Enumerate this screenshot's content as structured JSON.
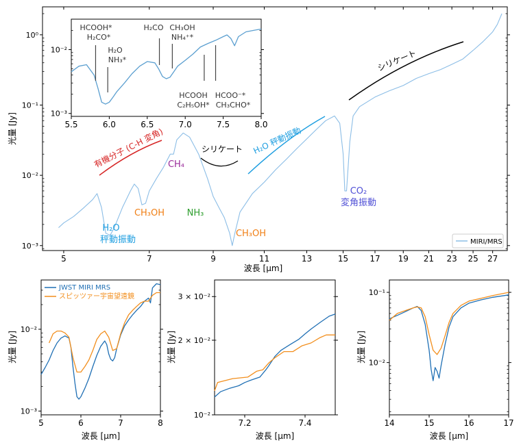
{
  "chart_data": [
    {
      "id": "main",
      "type": "line",
      "xscale": "log",
      "yscale": "log",
      "xlim": [
        4.6,
        28.6
      ],
      "ylim": [
        0.00085,
        2.5
      ],
      "xticks": [
        5,
        7,
        9,
        11,
        13,
        15,
        17,
        19,
        21,
        23,
        25,
        27
      ],
      "xtick_labels": [
        "5",
        "7",
        "9",
        "11",
        "13",
        "15",
        "17",
        "19",
        "21",
        "23",
        "25",
        "27"
      ],
      "yticks": [
        0.001,
        0.01,
        0.1,
        1
      ],
      "ytick_labels": [
        "10⁻³",
        "10⁻²",
        "10⁻¹",
        "10⁰"
      ],
      "xlabel": "波長 [μm]",
      "ylabel": "光量 [Jy]",
      "legend": {
        "position": "bottom-right",
        "entries": [
          "MIRI/MRS"
        ]
      },
      "series": [
        {
          "name": "MIRI/MRS",
          "color": "#8bbde6",
          "x": [
            4.9,
            5.0,
            5.2,
            5.4,
            5.6,
            5.7,
            5.8,
            5.9,
            6.0,
            6.1,
            6.3,
            6.5,
            6.6,
            6.7,
            6.8,
            6.9,
            7.0,
            7.2,
            7.4,
            7.6,
            7.7,
            7.8,
            8.0,
            8.2,
            8.5,
            8.8,
            9.0,
            9.2,
            9.4,
            9.6,
            9.7,
            9.8,
            10.0,
            10.5,
            11.0,
            11.5,
            12.0,
            12.5,
            13.0,
            13.5,
            14.0,
            14.5,
            14.8,
            15.0,
            15.1,
            15.2,
            15.4,
            15.6,
            16.0,
            17.0,
            18.0,
            19.0,
            20.0,
            21.0,
            22.0,
            23.0,
            24.0,
            25.0,
            26.0,
            27.0,
            27.5,
            28.0
          ],
          "y": [
            0.0018,
            0.0021,
            0.0026,
            0.0034,
            0.0045,
            0.0055,
            0.0035,
            0.0015,
            0.0014,
            0.0018,
            0.0035,
            0.006,
            0.0075,
            0.0065,
            0.0038,
            0.004,
            0.006,
            0.009,
            0.013,
            0.02,
            0.02,
            0.032,
            0.04,
            0.035,
            0.02,
            0.009,
            0.005,
            0.0035,
            0.0025,
            0.0015,
            0.001,
            0.0015,
            0.003,
            0.0055,
            0.008,
            0.012,
            0.017,
            0.024,
            0.033,
            0.045,
            0.06,
            0.07,
            0.055,
            0.02,
            0.006,
            0.006,
            0.03,
            0.07,
            0.095,
            0.13,
            0.16,
            0.19,
            0.24,
            0.28,
            0.32,
            0.38,
            0.45,
            0.6,
            0.8,
            1.1,
            1.4,
            2.0
          ]
        }
      ]
    },
    {
      "id": "inset",
      "type": "line",
      "xscale": "linear",
      "yscale": "log",
      "xlim": [
        5.5,
        8.0
      ],
      "ylim": [
        0.0009,
        0.03
      ],
      "xticks": [
        5.5,
        6.0,
        6.5,
        7.0,
        7.5,
        8.0
      ],
      "xtick_labels": [
        "5.5",
        "6.0",
        "6.5",
        "7.0",
        "7.5",
        "8.0"
      ],
      "yticks": [
        0.001,
        0.01
      ],
      "ytick_labels": [
        "10⁻³",
        "10⁻²"
      ],
      "series": [
        {
          "name": "MIRI/MRS",
          "color": "#5b9fd0",
          "x": [
            5.5,
            5.6,
            5.7,
            5.8,
            5.85,
            5.9,
            5.95,
            6.0,
            6.05,
            6.1,
            6.2,
            6.3,
            6.4,
            6.5,
            6.6,
            6.65,
            6.7,
            6.75,
            6.8,
            6.85,
            6.9,
            7.0,
            7.1,
            7.2,
            7.3,
            7.4,
            7.5,
            7.55,
            7.6,
            7.65,
            7.7,
            7.8,
            7.9,
            8.0
          ],
          "y": [
            0.0045,
            0.0055,
            0.0058,
            0.004,
            0.0025,
            0.0015,
            0.0014,
            0.0015,
            0.0018,
            0.0022,
            0.003,
            0.0042,
            0.0055,
            0.0065,
            0.0062,
            0.005,
            0.0038,
            0.0035,
            0.0037,
            0.0045,
            0.0055,
            0.0068,
            0.0085,
            0.011,
            0.0125,
            0.014,
            0.016,
            0.017,
            0.015,
            0.0115,
            0.016,
            0.019,
            0.02,
            0.021
          ]
        }
      ],
      "annotations": [
        {
          "text": "HCOOH*",
          "x": 5.82
        },
        {
          "text": "H₂CO*",
          "x": 5.82
        },
        {
          "text": "H₂O",
          "x": 5.98
        },
        {
          "text": "NH₃*",
          "x": 5.98
        },
        {
          "text": "H₂CO",
          "x": 6.66
        },
        {
          "text": "CH₃OH",
          "x": 6.83
        },
        {
          "text": "NH₄⁺*",
          "x": 6.83
        },
        {
          "text": "HCOOH",
          "x": 7.25
        },
        {
          "text": "C₂H₅OH*",
          "x": 7.25
        },
        {
          "text": "HCOO⁻*",
          "x": 7.4
        },
        {
          "text": "CH₃CHO*",
          "x": 7.4
        }
      ]
    },
    {
      "id": "bottom-left",
      "type": "line",
      "xscale": "linear",
      "yscale": "log",
      "xlim": [
        5.0,
        8.0
      ],
      "ylim": [
        0.0009,
        0.04
      ],
      "xticks": [
        5,
        6,
        7,
        8
      ],
      "xtick_labels": [
        "5",
        "6",
        "7",
        "8"
      ],
      "yticks": [
        0.001,
        0.01
      ],
      "ytick_labels": [
        "10⁻³",
        "10⁻²"
      ],
      "xlabel": "波長 [μm]",
      "ylabel": "光量 [Jy]",
      "legend": {
        "position": "top-left",
        "entries": [
          "JWST MIRI MRS",
          "スピッツァー宇宙望遠鏡"
        ]
      },
      "series": [
        {
          "name": "JWST MIRI MRS",
          "color": "#1f6fb4",
          "x": [
            5.0,
            5.1,
            5.2,
            5.3,
            5.4,
            5.5,
            5.6,
            5.7,
            5.75,
            5.8,
            5.85,
            5.9,
            5.95,
            6.0,
            6.1,
            6.2,
            6.3,
            6.4,
            6.5,
            6.6,
            6.65,
            6.7,
            6.75,
            6.8,
            6.85,
            6.9,
            7.0,
            7.1,
            7.2,
            7.3,
            7.4,
            7.5,
            7.6,
            7.7,
            7.75,
            7.8,
            7.9,
            8.0
          ],
          "y": [
            0.0028,
            0.0034,
            0.0042,
            0.0055,
            0.0068,
            0.0078,
            0.0083,
            0.0078,
            0.006,
            0.0035,
            0.0022,
            0.0015,
            0.0014,
            0.0015,
            0.0019,
            0.0025,
            0.0035,
            0.0048,
            0.0062,
            0.0072,
            0.0065,
            0.005,
            0.0043,
            0.0041,
            0.0045,
            0.0058,
            0.0085,
            0.011,
            0.013,
            0.015,
            0.017,
            0.019,
            0.022,
            0.024,
            0.021,
            0.032,
            0.036,
            0.035
          ]
        },
        {
          "name": "スピッツァー宇宙望遠鏡",
          "color": "#f28e1c",
          "x": [
            5.2,
            5.3,
            5.4,
            5.5,
            5.6,
            5.7,
            5.8,
            5.9,
            6.0,
            6.1,
            6.2,
            6.3,
            6.4,
            6.5,
            6.6,
            6.7,
            6.8,
            6.9,
            7.0,
            7.1,
            7.2,
            7.3,
            7.4,
            7.5,
            7.6,
            7.7,
            7.8,
            7.9,
            8.0
          ],
          "y": [
            0.0068,
            0.0088,
            0.0095,
            0.0095,
            0.009,
            0.008,
            0.0045,
            0.003,
            0.003,
            0.0035,
            0.0042,
            0.0055,
            0.0075,
            0.0088,
            0.0095,
            0.008,
            0.0055,
            0.0058,
            0.0088,
            0.012,
            0.015,
            0.017,
            0.019,
            0.021,
            0.022,
            0.022,
            0.026,
            0.028,
            0.028
          ]
        }
      ]
    },
    {
      "id": "bottom-middle",
      "type": "line",
      "xscale": "linear",
      "yscale": "log",
      "xlim": [
        7.1,
        7.5
      ],
      "ylim": [
        0.01,
        0.035
      ],
      "xticks": [
        7.2,
        7.4
      ],
      "xtick_labels": [
        "7.2",
        "7.4"
      ],
      "yticks": [
        0.01,
        0.02,
        0.03
      ],
      "ytick_labels": [
        "10⁻²",
        "2 × 10⁻²",
        "3 × 10⁻²"
      ],
      "xlabel": "波長 [μm]",
      "ylabel": "光量 [Jy]",
      "series": [
        {
          "name": "JWST MIRI MRS",
          "color": "#1f6fb4",
          "x": [
            7.1,
            7.12,
            7.15,
            7.18,
            7.2,
            7.22,
            7.25,
            7.27,
            7.28,
            7.3,
            7.32,
            7.35,
            7.38,
            7.4,
            7.42,
            7.45,
            7.48,
            7.5
          ],
          "y": [
            0.0118,
            0.0124,
            0.0128,
            0.0131,
            0.0135,
            0.0138,
            0.0142,
            0.0152,
            0.0158,
            0.0172,
            0.0182,
            0.0192,
            0.0202,
            0.0212,
            0.0222,
            0.0236,
            0.025,
            0.0255
          ]
        },
        {
          "name": "スピッツァー宇宙望遠鏡",
          "color": "#f28e1c",
          "x": [
            7.1,
            7.11,
            7.16,
            7.21,
            7.24,
            7.26,
            7.28,
            7.3,
            7.33,
            7.36,
            7.39,
            7.42,
            7.45,
            7.47,
            7.5
          ],
          "y": [
            0.0125,
            0.0135,
            0.014,
            0.0142,
            0.015,
            0.0152,
            0.0162,
            0.017,
            0.018,
            0.018,
            0.019,
            0.0195,
            0.0205,
            0.021,
            0.021
          ]
        }
      ]
    },
    {
      "id": "bottom-right",
      "type": "line",
      "xscale": "linear",
      "yscale": "log",
      "xlim": [
        14.0,
        17.0
      ],
      "ylim": [
        0.0018,
        0.15
      ],
      "xticks": [
        14,
        15,
        16,
        17
      ],
      "xtick_labels": [
        "14",
        "15",
        "16",
        "17"
      ],
      "yticks": [
        0.01,
        0.1
      ],
      "ytick_labels": [
        "10⁻²",
        "10⁻¹"
      ],
      "xlabel": "波長 [μm]",
      "ylabel": "光量 [Jy]",
      "series": [
        {
          "name": "JWST MIRI MRS",
          "color": "#1f6fb4",
          "x": [
            14.0,
            14.2,
            14.4,
            14.6,
            14.7,
            14.8,
            14.9,
            15.0,
            15.05,
            15.1,
            15.15,
            15.2,
            15.25,
            15.3,
            15.4,
            15.5,
            15.6,
            15.8,
            16.0,
            16.3,
            16.6,
            17.0
          ],
          "y": [
            0.042,
            0.047,
            0.053,
            0.06,
            0.063,
            0.055,
            0.035,
            0.015,
            0.008,
            0.0055,
            0.0085,
            0.0075,
            0.006,
            0.009,
            0.018,
            0.032,
            0.045,
            0.06,
            0.07,
            0.078,
            0.085,
            0.092
          ]
        },
        {
          "name": "スピッツァー宇宙望遠鏡",
          "color": "#f28e1c",
          "x": [
            14.0,
            14.2,
            14.4,
            14.6,
            14.7,
            14.8,
            14.9,
            15.0,
            15.1,
            15.2,
            15.3,
            15.4,
            15.5,
            15.6,
            15.8,
            16.0,
            16.3,
            16.6,
            17.0
          ],
          "y": [
            0.04,
            0.05,
            0.055,
            0.06,
            0.062,
            0.06,
            0.045,
            0.025,
            0.015,
            0.013,
            0.016,
            0.024,
            0.037,
            0.05,
            0.065,
            0.075,
            0.082,
            0.09,
            0.1
          ]
        }
      ]
    }
  ],
  "main_annotations": [
    {
      "id": "h2o-bend",
      "text": "H₂O",
      "text2": "秤動振動",
      "color": "#1e9ee0"
    },
    {
      "id": "ch3oh-1",
      "text": "CH₃OH",
      "color": "#f07f15"
    },
    {
      "id": "ch4",
      "text": "CH₄",
      "color": "#9a2a9a"
    },
    {
      "id": "nh3",
      "text": "NH₃",
      "color": "#2e9e2e"
    },
    {
      "id": "ch3oh-2",
      "text": "CH₃OH",
      "color": "#f07f15"
    },
    {
      "id": "co2",
      "text": "CO₂",
      "text2": "変角振動",
      "color": "#5050d6"
    },
    {
      "id": "organics",
      "text": "有機分子 (C-H 変角)",
      "color": "#d62424"
    },
    {
      "id": "silicate-1",
      "text": "シリケート",
      "color": "#000000"
    },
    {
      "id": "h2o-lib",
      "text": "H₂O 秤動振動",
      "color": "#1e9ee0"
    },
    {
      "id": "silicate-2",
      "text": "シリケート",
      "color": "#000000"
    }
  ]
}
